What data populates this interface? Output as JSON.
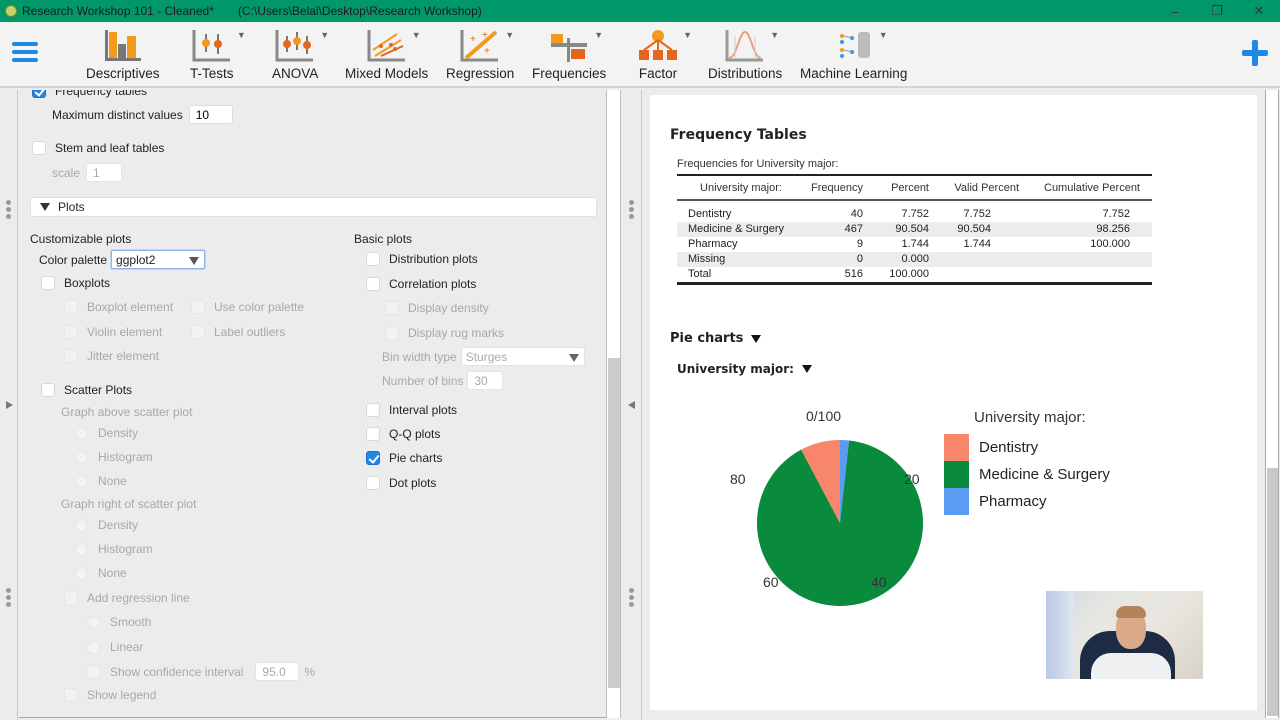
{
  "window": {
    "title": "Research Workshop 101 - Cleaned*",
    "path": "(C:\\Users\\Belal\\Desktop\\Research Workshop)",
    "controls": {
      "minimize": "–",
      "restore": "❐",
      "close": "✕"
    }
  },
  "ribbon": {
    "menu_icon": "hamburger-menu-icon",
    "add_icon": "plus-icon",
    "tools": [
      {
        "label": "Descriptives",
        "icon": "descriptives-icon",
        "has_dropdown": false
      },
      {
        "label": "T-Tests",
        "icon": "t-tests-icon",
        "has_dropdown": true
      },
      {
        "label": "ANOVA",
        "icon": "anova-icon",
        "has_dropdown": true
      },
      {
        "label": "Mixed Models",
        "icon": "mixed-models-icon",
        "has_dropdown": true
      },
      {
        "label": "Regression",
        "icon": "regression-icon",
        "has_dropdown": true
      },
      {
        "label": "Frequencies",
        "icon": "frequencies-icon",
        "has_dropdown": true
      },
      {
        "label": "Factor",
        "icon": "factor-icon",
        "has_dropdown": true
      },
      {
        "label": "Distributions",
        "icon": "distributions-icon",
        "has_dropdown": true
      },
      {
        "label": "Machine Learning",
        "icon": "machine-learning-icon",
        "has_dropdown": true
      }
    ],
    "dropdown_glyph": "▼"
  },
  "options": {
    "frequency_tables": {
      "label": "Frequency tables",
      "checked": true
    },
    "max_distinct": {
      "label": "Maximum distinct values",
      "value": "10"
    },
    "stem_leaf": {
      "label": "Stem and leaf tables",
      "checked": false
    },
    "scale": {
      "label": "scale",
      "value": "1"
    },
    "plots_section": {
      "label": "Plots",
      "expanded": true
    },
    "customizable": {
      "heading": "Customizable plots",
      "color_palette_label": "Color palette",
      "color_palette_value": "ggplot2",
      "boxplots": {
        "label": "Boxplots",
        "checked": false
      },
      "boxplot_element": "Boxplot element",
      "use_color_palette": "Use color palette",
      "violin_element": "Violin element",
      "label_outliers": "Label outliers",
      "jitter_element": "Jitter element",
      "scatter_plots": {
        "label": "Scatter Plots",
        "checked": false
      },
      "graph_above": "Graph above scatter plot",
      "above_options": [
        "Density",
        "Histogram",
        "None"
      ],
      "graph_right": "Graph right of scatter plot",
      "right_options": [
        "Density",
        "Histogram",
        "None"
      ],
      "add_regression_line": "Add regression line",
      "smooth": "Smooth",
      "linear": "Linear",
      "show_ci": "Show confidence interval",
      "ci_value": "95.0",
      "ci_unit": "%",
      "show_legend": "Show legend"
    },
    "basic": {
      "heading": "Basic plots",
      "distribution_plots": {
        "label": "Distribution plots",
        "checked": false
      },
      "correlation_plots": {
        "label": "Correlation plots",
        "checked": false
      },
      "display_density": "Display density",
      "display_rug": "Display rug marks",
      "bin_width_label": "Bin width type",
      "bin_width_value": "Sturges",
      "num_bins_label": "Number of bins",
      "num_bins_value": "30",
      "interval_plots": {
        "label": "Interval plots",
        "checked": false
      },
      "qq_plots": {
        "label": "Q-Q plots",
        "checked": false
      },
      "pie_charts": {
        "label": "Pie charts",
        "checked": true
      },
      "dot_plots": {
        "label": "Dot plots",
        "checked": false
      }
    }
  },
  "results": {
    "title": "Frequency Tables",
    "table_caption": "Frequencies for University major:",
    "table": {
      "headers": [
        "University major:",
        "Frequency",
        "Percent",
        "Valid Percent",
        "Cumulative Percent"
      ],
      "rows": [
        [
          "Dentistry",
          "40",
          "7.752",
          "7.752",
          "7.752"
        ],
        [
          "Medicine & Surgery",
          "467",
          "90.504",
          "90.504",
          "98.256"
        ],
        [
          "Pharmacy",
          "9",
          "1.744",
          "1.744",
          "100.000"
        ],
        [
          "Missing",
          "0",
          "0.000",
          "",
          ""
        ],
        [
          "Total",
          "516",
          "100.000",
          "",
          ""
        ]
      ]
    },
    "pie_header": "Pie charts",
    "pie_subheader": "University major:"
  },
  "chart_data": {
    "type": "pie",
    "title": "University major:",
    "legend_title": "University major:",
    "legend_position": "right",
    "categories": [
      "Dentistry",
      "Medicine & Surgery",
      "Pharmacy"
    ],
    "values": [
      40,
      467,
      9
    ],
    "percent": [
      7.752,
      90.504,
      1.744
    ],
    "colors": [
      "#f8866a",
      "#0a8a3c",
      "#5b9cf2"
    ],
    "axis_tick_labels": [
      "0/100",
      "20",
      "40",
      "60",
      "80"
    ],
    "direction": "clockwise from top, reversed category order"
  },
  "colors": {
    "titlebar": "#00986a",
    "accent": "#1e88e5",
    "dentistry": "#f8866a",
    "medicine": "#0a8a3c",
    "pharmacy": "#5b9cf2"
  }
}
